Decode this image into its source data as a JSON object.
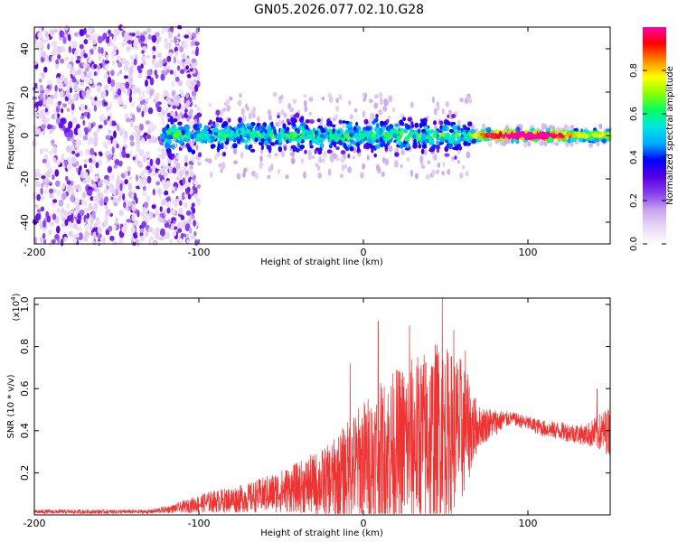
{
  "title": "GN05.2026.077.02.10.G28",
  "chart_data": [
    {
      "type": "heatmap",
      "name": "spectrogram",
      "xlabel": "Height of straight line (km)",
      "ylabel": "Frequency (Hz)",
      "xlim": [
        -200,
        150
      ],
      "ylim": [
        -50,
        50
      ],
      "xticks": [
        -200,
        -100,
        0,
        100
      ],
      "yticks": [
        -40,
        -20,
        0,
        20,
        40
      ],
      "colorbar": {
        "label": "Normalized spectral amplitude",
        "range": [
          0,
          1
        ],
        "ticks": [
          "0.0",
          "0.2",
          "0.4",
          "0.6",
          "0.8"
        ],
        "colormap": [
          "#ffffff",
          "#e9d8f5",
          "#c9a8ee",
          "#8a3ff0",
          "#5a00e0",
          "#0000ff",
          "#00aaff",
          "#00e5e5",
          "#00ff66",
          "#88ff00",
          "#ffff00",
          "#ff8800",
          "#ff0000",
          "#ff00aa"
        ]
      },
      "features": {
        "noise_region_km": [
          -200,
          -100
        ],
        "signal_start_km": -122,
        "steady_tone_start_km": 65,
        "steady_tone_freq_hz": 0,
        "band_halfwidth_hz": [
          12,
          3
        ]
      }
    },
    {
      "type": "line",
      "name": "snr",
      "xlabel": "Height of straight line (km)",
      "ylabel": "SNR (10 * v/v)",
      "multiplier_label": "(x10",
      "multiplier_exp": "4",
      "xlim": [
        -200,
        150
      ],
      "ylim": [
        0,
        1.03
      ],
      "xticks": [
        -200,
        -100,
        0,
        100
      ],
      "yticks": [
        "0.2",
        "0.4",
        "0.6",
        "0.8",
        "1.0"
      ],
      "ytick_values": [
        0.2,
        0.4,
        0.6,
        0.8,
        1.0
      ],
      "color": "#ee3333",
      "envelope": [
        {
          "x": -200,
          "mean": 0.015,
          "amp": 0.01
        },
        {
          "x": -130,
          "mean": 0.015,
          "amp": 0.01
        },
        {
          "x": -115,
          "mean": 0.03,
          "amp": 0.02
        },
        {
          "x": -95,
          "mean": 0.06,
          "amp": 0.05
        },
        {
          "x": -70,
          "mean": 0.08,
          "amp": 0.07
        },
        {
          "x": -40,
          "mean": 0.13,
          "amp": 0.12
        },
        {
          "x": -20,
          "mean": 0.16,
          "amp": 0.18
        },
        {
          "x": 0,
          "mean": 0.25,
          "amp": 0.3
        },
        {
          "x": 20,
          "mean": 0.32,
          "amp": 0.38
        },
        {
          "x": 45,
          "mean": 0.38,
          "amp": 0.45
        },
        {
          "x": 60,
          "mean": 0.4,
          "amp": 0.35
        },
        {
          "x": 70,
          "mean": 0.42,
          "amp": 0.1
        },
        {
          "x": 90,
          "mean": 0.46,
          "amp": 0.03
        },
        {
          "x": 110,
          "mean": 0.41,
          "amp": 0.04
        },
        {
          "x": 135,
          "mean": 0.38,
          "amp": 0.05
        },
        {
          "x": 150,
          "mean": 0.4,
          "amp": 0.12
        }
      ],
      "peaks": [
        {
          "x": 9,
          "y": 0.92
        },
        {
          "x": 48,
          "y": 1.03
        },
        {
          "x": 55,
          "y": 0.88
        },
        {
          "x": -8,
          "y": 0.72
        },
        {
          "x": 28,
          "y": 0.9
        },
        {
          "x": 62,
          "y": 0.78
        },
        {
          "x": 142,
          "y": 0.6
        }
      ]
    }
  ]
}
